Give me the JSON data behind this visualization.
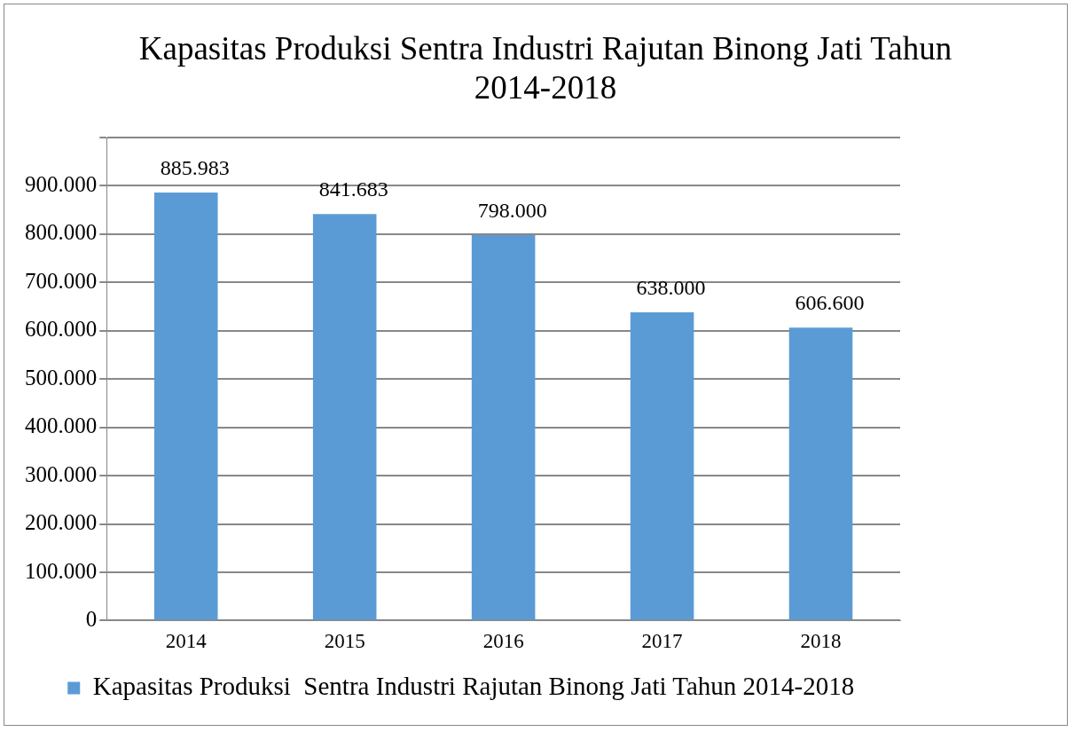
{
  "chart_data": {
    "type": "bar",
    "title": "Kapasitas Produksi Sentra Industri Rajutan Binong Jati Tahun 2014-2018",
    "categories": [
      "2014",
      "2015",
      "2016",
      "2017",
      "2018"
    ],
    "series": [
      {
        "name": "Kapasitas Produksi  Sentra Industri Rajutan Binong Jati Tahun 2014-2018",
        "color": "#5b9bd5",
        "values": [
          885983,
          841683,
          798000,
          638000,
          606600
        ],
        "value_labels": [
          "885.983",
          "841.683",
          "798.000",
          "638.000",
          "606.600"
        ]
      }
    ],
    "ylim": [
      0,
      1000000
    ],
    "yticks": [
      {
        "value": 0,
        "label": "0"
      },
      {
        "value": 100000,
        "label": "100.000"
      },
      {
        "value": 200000,
        "label": "200.000"
      },
      {
        "value": 300000,
        "label": "300.000"
      },
      {
        "value": 400000,
        "label": "400.000"
      },
      {
        "value": 500000,
        "label": "500.000"
      },
      {
        "value": 600000,
        "label": "600.000"
      },
      {
        "value": 700000,
        "label": "700.000"
      },
      {
        "value": 800000,
        "label": "800.000"
      },
      {
        "value": 900000,
        "label": "900.000"
      },
      {
        "value": 1000000,
        "label": null
      }
    ],
    "grid": "y",
    "legend": "bottom"
  }
}
